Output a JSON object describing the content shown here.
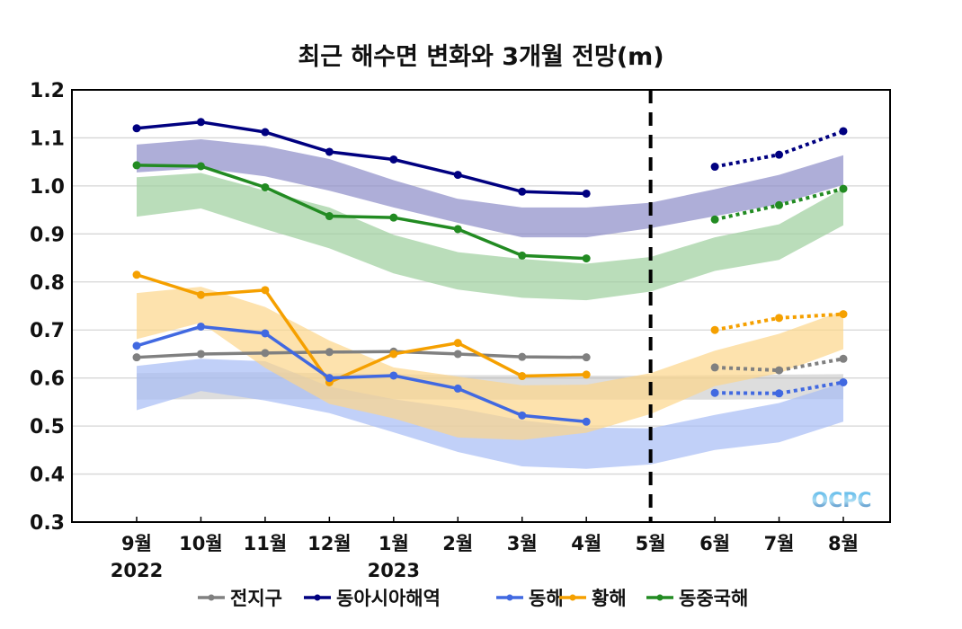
{
  "chart_data": {
    "type": "line",
    "title": "최근 해수면 변화와 3개월 전망(m)",
    "xlabel": "",
    "ylabel": "",
    "ylim": [
      0.3,
      1.2
    ],
    "yticks": [
      "0.3",
      "0.4",
      "0.5",
      "0.6",
      "0.7",
      "0.8",
      "0.9",
      "1.0",
      "1.1",
      "1.2"
    ],
    "ytick_values": [
      0.3,
      0.4,
      0.5,
      0.6,
      0.7,
      0.8,
      0.9,
      1.0,
      1.1,
      1.2
    ],
    "categories": [
      "9월",
      "10월",
      "11월",
      "12월",
      "1월",
      "2월",
      "3월",
      "4월",
      "5월",
      "6월",
      "7월",
      "8월"
    ],
    "year_labels": [
      {
        "category_index": 0,
        "text": "2022"
      },
      {
        "category_index": 4,
        "text": "2023"
      }
    ],
    "forecast_divider_index": 8,
    "grid": true,
    "legend_position": "bottom",
    "watermark": "OCPC",
    "series": [
      {
        "name": "전지구",
        "color": "#808080",
        "band_color": "#b4b4b4",
        "observed": [
          0.643,
          0.65,
          0.652,
          0.654,
          0.655,
          0.65,
          0.644,
          0.643,
          null,
          null,
          null,
          null
        ],
        "forecast": [
          null,
          null,
          null,
          null,
          null,
          null,
          null,
          null,
          null,
          0.622,
          0.616,
          0.64
        ],
        "band_upper": [
          0.61,
          0.612,
          0.612,
          0.61,
          0.608,
          0.606,
          0.606,
          0.605,
          0.605,
          0.606,
          0.607,
          0.608
        ],
        "band_lower": [
          0.555,
          0.556,
          0.556,
          0.556,
          0.556,
          0.555,
          0.555,
          0.555,
          0.555,
          0.555,
          0.556,
          0.556
        ]
      },
      {
        "name": "동아시아해역",
        "color": "#000080",
        "band_color": "#8c8cc8",
        "observed": [
          1.12,
          1.133,
          1.112,
          1.071,
          1.055,
          1.023,
          0.988,
          0.984,
          null,
          null,
          null,
          null
        ],
        "forecast": [
          null,
          null,
          null,
          null,
          null,
          null,
          null,
          null,
          null,
          1.04,
          1.065,
          1.114
        ],
        "band_upper": [
          1.086,
          1.097,
          1.083,
          1.056,
          1.012,
          0.973,
          0.955,
          0.955,
          0.965,
          0.993,
          1.023,
          1.064
        ],
        "band_lower": [
          1.028,
          1.037,
          1.02,
          0.99,
          0.955,
          0.923,
          0.893,
          0.893,
          0.912,
          0.937,
          0.962,
          1.002
        ]
      },
      {
        "name": "동해",
        "color": "#4169e1",
        "band_color": "#a6bcf5",
        "observed": [
          0.667,
          0.707,
          0.693,
          0.6,
          0.605,
          0.578,
          0.522,
          0.509,
          null,
          null,
          null,
          null
        ],
        "forecast": [
          null,
          null,
          null,
          null,
          null,
          null,
          null,
          null,
          null,
          0.569,
          0.568,
          0.591
        ],
        "band_upper": [
          0.625,
          0.64,
          0.635,
          0.582,
          0.556,
          0.537,
          0.512,
          0.497,
          0.495,
          0.523,
          0.548,
          0.59
        ],
        "band_lower": [
          0.533,
          0.573,
          0.553,
          0.527,
          0.487,
          0.446,
          0.416,
          0.411,
          0.42,
          0.45,
          0.466,
          0.509
        ]
      },
      {
        "name": "황해",
        "color": "#f5a000",
        "band_color": "#fcd58a",
        "observed": [
          0.815,
          0.773,
          0.783,
          0.591,
          0.65,
          0.673,
          0.604,
          0.607,
          null,
          null,
          null,
          null
        ],
        "forecast": [
          null,
          null,
          null,
          null,
          null,
          null,
          null,
          null,
          null,
          0.7,
          0.725,
          0.733
        ],
        "band_upper": [
          0.777,
          0.79,
          0.748,
          0.678,
          0.622,
          0.603,
          0.585,
          0.586,
          0.61,
          0.657,
          0.692,
          0.74
        ],
        "band_lower": [
          0.681,
          0.715,
          0.621,
          0.546,
          0.516,
          0.476,
          0.471,
          0.486,
          0.525,
          0.583,
          0.61,
          0.66
        ]
      },
      {
        "name": "동중국해",
        "color": "#228b22",
        "band_color": "#9ccf9c",
        "observed": [
          1.043,
          1.041,
          0.997,
          0.937,
          0.934,
          0.91,
          0.855,
          0.849,
          null,
          null,
          null,
          null
        ],
        "forecast": [
          null,
          null,
          null,
          null,
          null,
          null,
          null,
          null,
          null,
          0.93,
          0.96,
          0.994
        ],
        "band_upper": [
          1.018,
          1.027,
          0.99,
          0.955,
          0.898,
          0.862,
          0.848,
          0.838,
          0.852,
          0.893,
          0.92,
          0.995
        ],
        "band_lower": [
          0.936,
          0.953,
          0.91,
          0.87,
          0.818,
          0.784,
          0.767,
          0.762,
          0.78,
          0.823,
          0.846,
          0.918
        ]
      }
    ]
  }
}
